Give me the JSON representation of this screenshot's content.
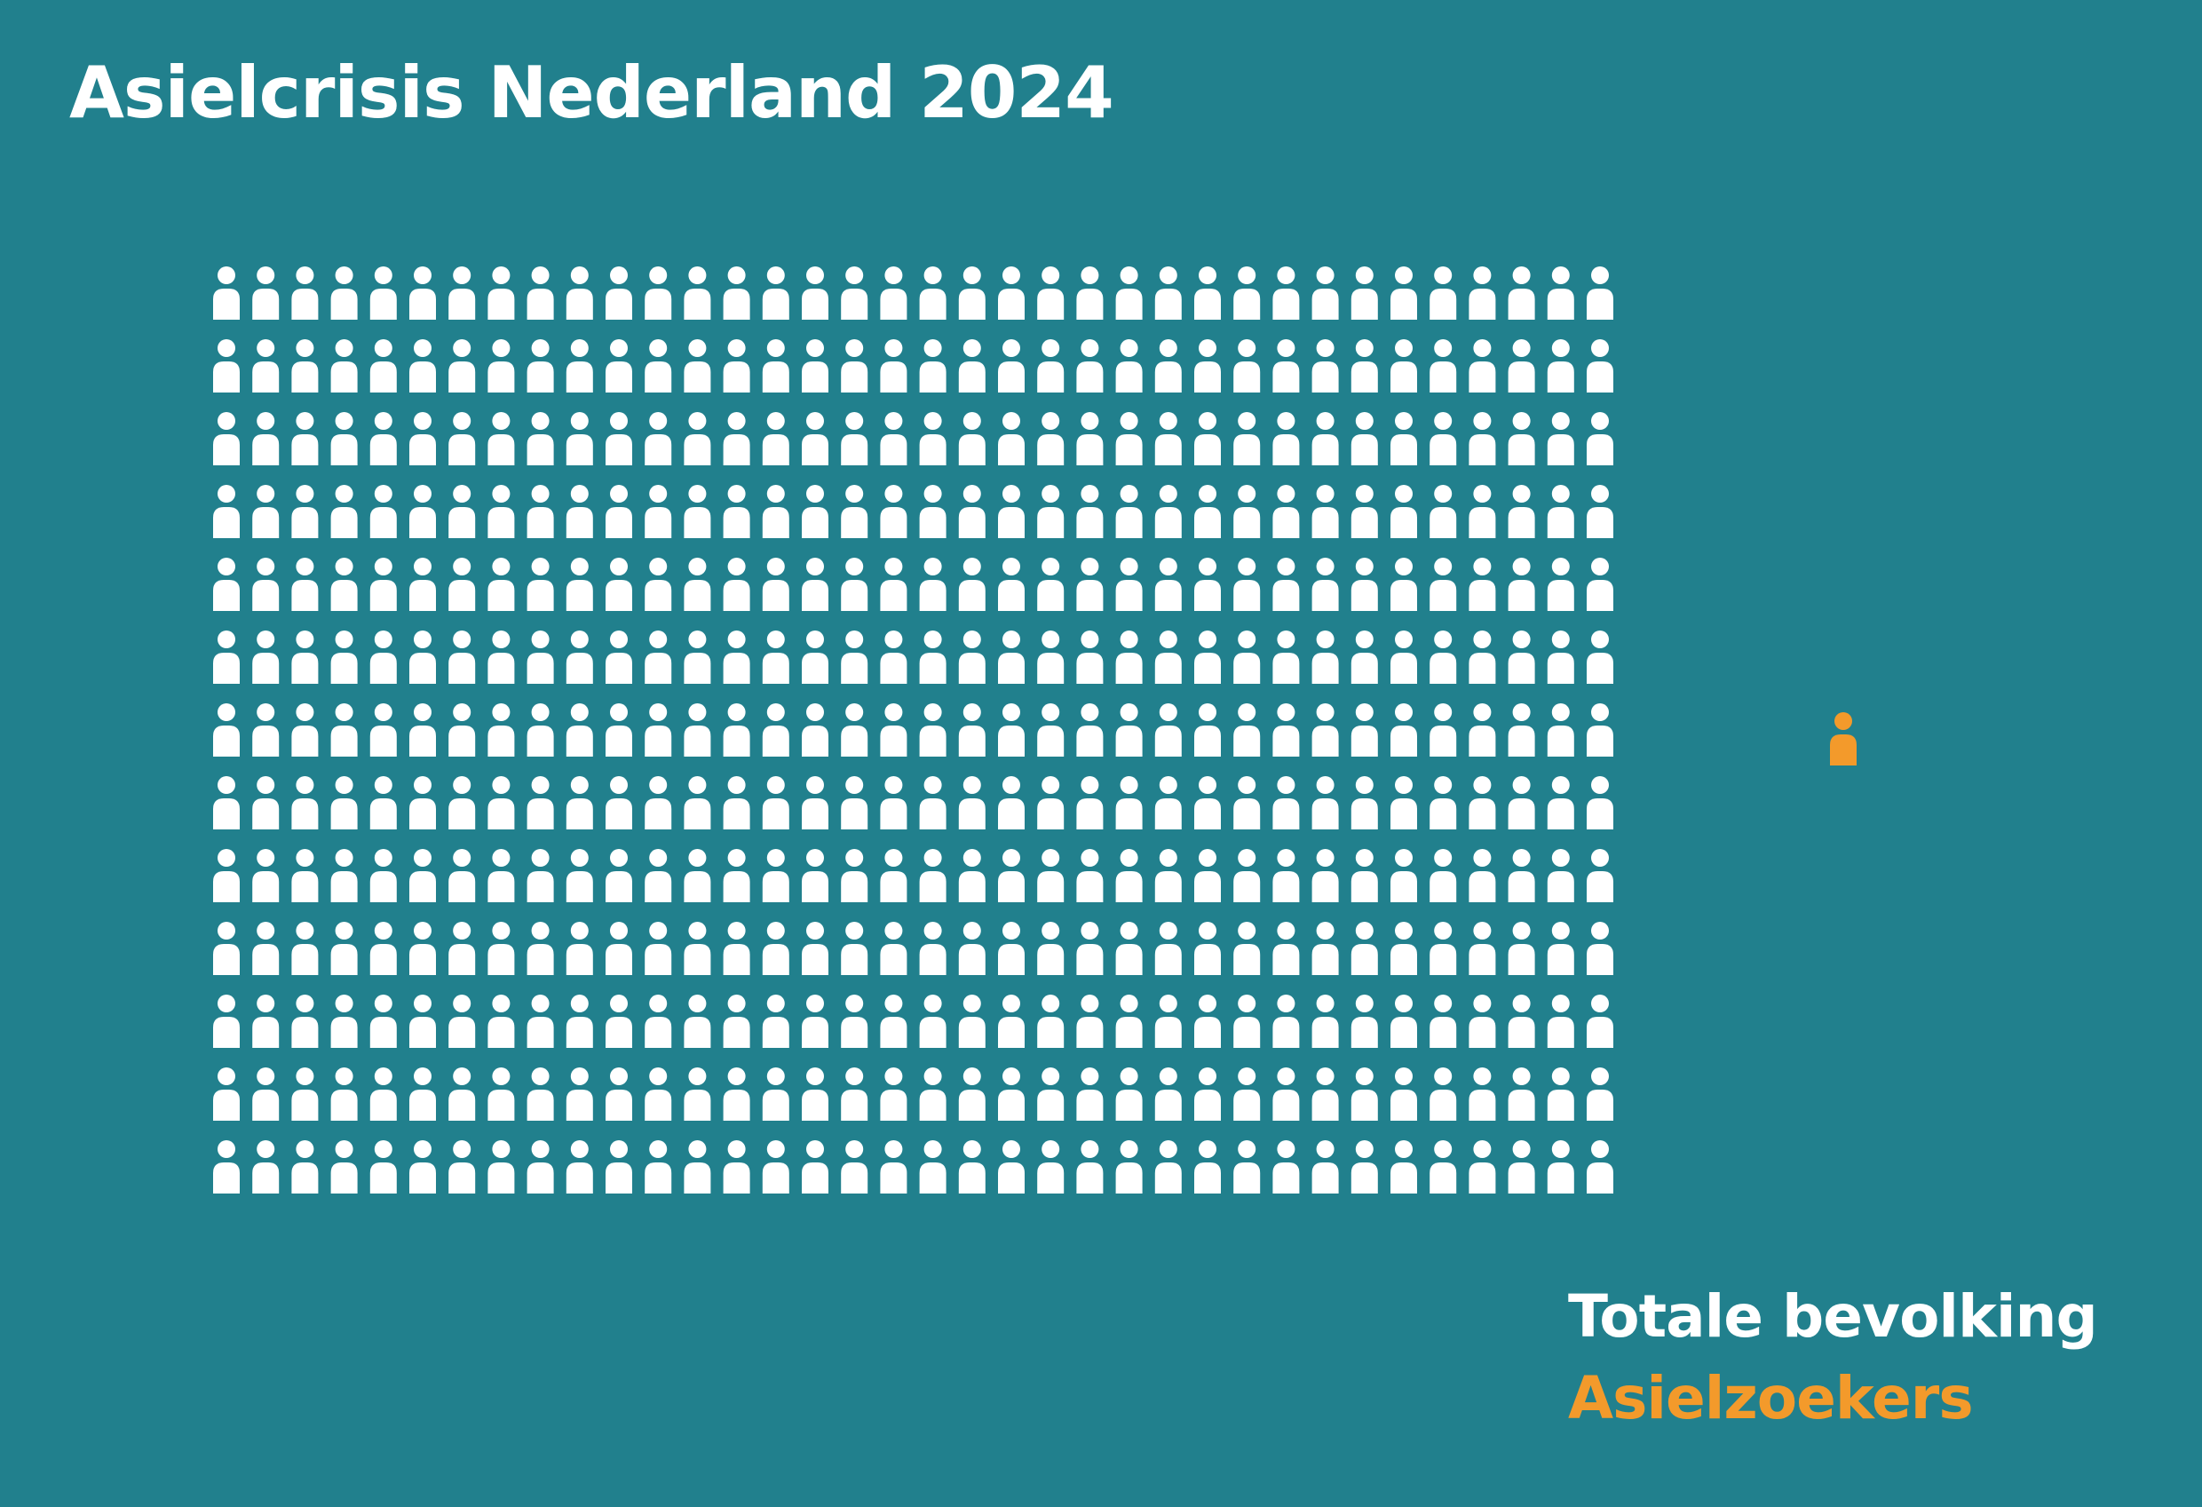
{
  "title": "Asielcrisis Nederland 2024",
  "colors": {
    "background": "#21808d",
    "population": "#ffffff",
    "asylum_seekers": "#f39a2b"
  },
  "chart_data": {
    "type": "pictogram",
    "series": [
      {
        "name": "Totale bevolking",
        "grid": {
          "rows": 13,
          "columns": 36
        },
        "icon_count": 468,
        "color": "#ffffff",
        "icon": "person-icon"
      },
      {
        "name": "Asielzoekers",
        "icon_count": 1,
        "color": "#f39a2b",
        "icon": "person-icon"
      }
    ]
  }
}
